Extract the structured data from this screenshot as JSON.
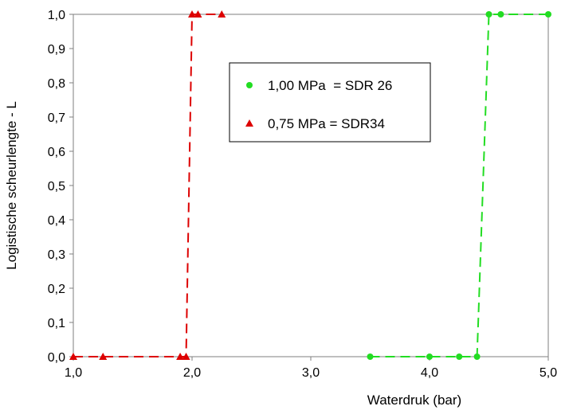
{
  "chart_data": {
    "type": "scatter",
    "xlabel": "Waterdruk (bar)",
    "ylabel": "Logistische scheurlengte - L",
    "xlim": [
      1.0,
      5.0
    ],
    "ylim": [
      0.0,
      1.0
    ],
    "x_ticks": [
      "1,0",
      "2,0",
      "3,0",
      "4,0",
      "5,0"
    ],
    "y_ticks": [
      "0,0",
      "0,1",
      "0,2",
      "0,3",
      "0,4",
      "0,5",
      "0,6",
      "0,7",
      "0,8",
      "0,9",
      "1,0"
    ],
    "grid": false,
    "legend_position": "upper-center",
    "series": [
      {
        "name": "1,00 MPa  = SDR 26",
        "color": "#22dd22",
        "marker": "circle",
        "line": "dashed",
        "points": [
          {
            "x": 3.5,
            "y": 0.0
          },
          {
            "x": 4.0,
            "y": 0.0
          },
          {
            "x": 4.25,
            "y": 0.0
          },
          {
            "x": 4.4,
            "y": 0.0
          },
          {
            "x": 4.5,
            "y": 1.0
          },
          {
            "x": 4.6,
            "y": 1.0
          },
          {
            "x": 5.0,
            "y": 1.0
          }
        ]
      },
      {
        "name": "0,75 MPa = SDR34",
        "color": "#dd0000",
        "marker": "triangle",
        "line": "dashed",
        "points": [
          {
            "x": 1.0,
            "y": 0.0
          },
          {
            "x": 1.25,
            "y": 0.0
          },
          {
            "x": 1.9,
            "y": 0.0
          },
          {
            "x": 1.95,
            "y": 0.0
          },
          {
            "x": 2.0,
            "y": 1.0
          },
          {
            "x": 2.05,
            "y": 1.0
          },
          {
            "x": 2.25,
            "y": 1.0
          }
        ]
      }
    ]
  }
}
